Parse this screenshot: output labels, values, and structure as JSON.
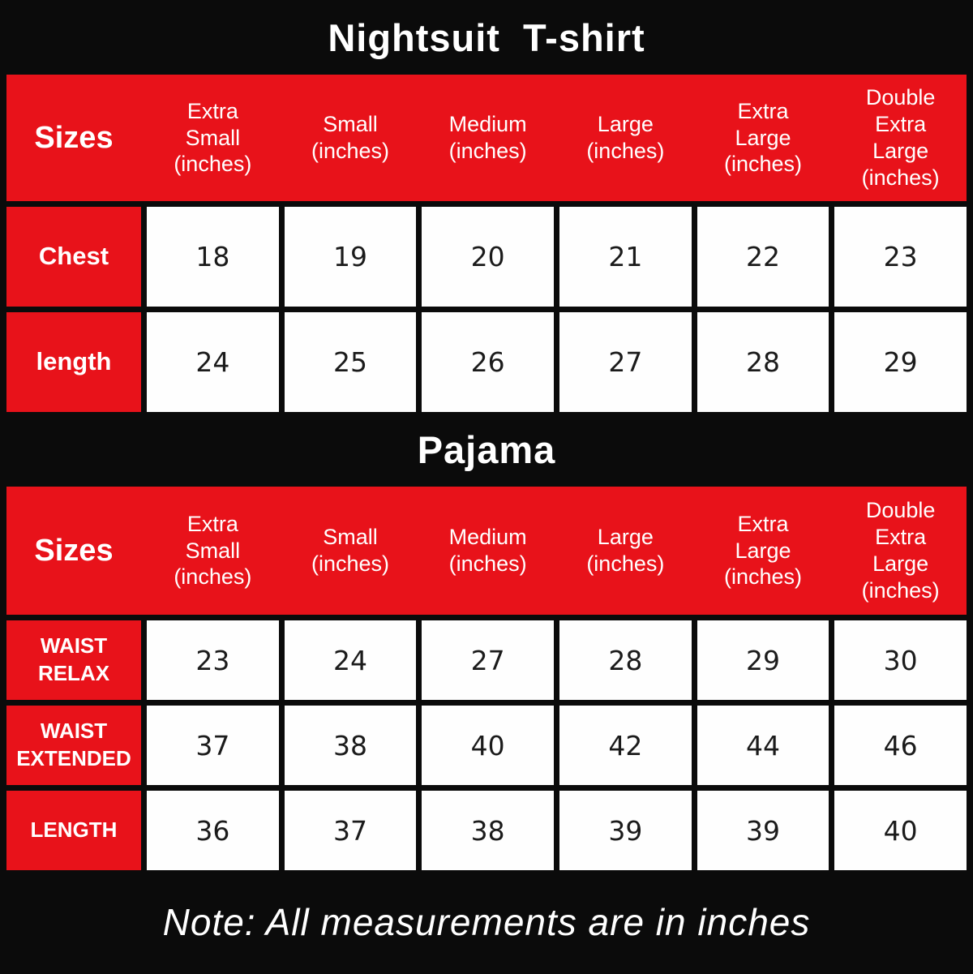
{
  "colors": {
    "background": "#0b0b0b",
    "accent_red": "#e8121a",
    "cell_white": "#fefefe",
    "text_dark": "#1b1b1b",
    "text_light": "#ffffff"
  },
  "note": "Note: All measurements are in inches",
  "tables": [
    {
      "title": "Nightsuit  T-shirt",
      "sizes_label": "Sizes",
      "columns": [
        "Extra\nSmall\n(inches)",
        "Small\n(inches)",
        "Medium\n(inches)",
        "Large\n(inches)",
        "Extra\nLarge\n(inches)",
        "Double\nExtra\nLarge\n(inches)"
      ],
      "rows": [
        {
          "label": "Chest",
          "values": [
            18,
            19,
            20,
            21,
            22,
            23
          ]
        },
        {
          "label": "length",
          "values": [
            24,
            25,
            26,
            27,
            28,
            29
          ]
        }
      ]
    },
    {
      "title": "Pajama",
      "sizes_label": "Sizes",
      "columns": [
        "Extra\nSmall\n(inches)",
        "Small\n(inches)",
        "Medium\n(inches)",
        "Large\n(inches)",
        "Extra\nLarge\n(inches)",
        "Double\nExtra\nLarge\n(inches)"
      ],
      "rows": [
        {
          "label": "WAIST\nRELAX",
          "values": [
            23,
            24,
            27,
            28,
            29,
            30
          ]
        },
        {
          "label": "WAIST\nEXTENDED",
          "values": [
            37,
            38,
            40,
            42,
            44,
            46
          ]
        },
        {
          "label": "LENGTH",
          "values": [
            36,
            37,
            38,
            39,
            39,
            40
          ]
        }
      ]
    }
  ],
  "chart_data": [
    {
      "type": "table",
      "title": "Nightsuit T-shirt",
      "columns": [
        "Sizes",
        "Extra Small (inches)",
        "Small (inches)",
        "Medium (inches)",
        "Large (inches)",
        "Extra Large (inches)",
        "Double Extra Large (inches)"
      ],
      "rows": [
        [
          "Chest",
          18,
          19,
          20,
          21,
          22,
          23
        ],
        [
          "length",
          24,
          25,
          26,
          27,
          28,
          29
        ]
      ]
    },
    {
      "type": "table",
      "title": "Pajama",
      "columns": [
        "Sizes",
        "Extra Small (inches)",
        "Small (inches)",
        "Medium (inches)",
        "Large (inches)",
        "Extra Large (inches)",
        "Double Extra Large (inches)"
      ],
      "rows": [
        [
          "WAIST RELAX",
          23,
          24,
          27,
          28,
          29,
          30
        ],
        [
          "WAIST EXTENDED",
          37,
          38,
          40,
          42,
          44,
          46
        ],
        [
          "LENGTH",
          36,
          37,
          38,
          39,
          39,
          40
        ]
      ]
    }
  ]
}
